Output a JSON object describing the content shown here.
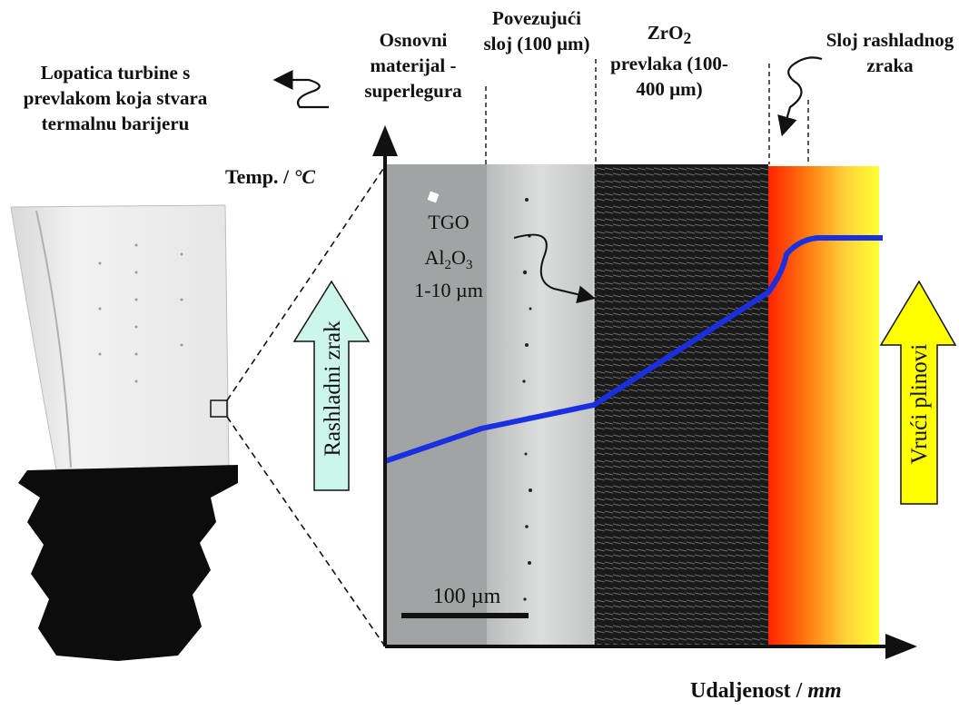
{
  "blade": {
    "title": "Lopatica turbine s prevlakom koja stvara termalnu barijeru"
  },
  "layers": {
    "base": "Osnovni materijal - superlegura",
    "bond": "Povezujući sloj (100 µm)",
    "zro2_main": "ZrO",
    "zro2_sub": "2",
    "zro2_rest": "prevlaka (100-400 µm)",
    "cooling_air_layer": "Sloj rashladnog zraka"
  },
  "axes": {
    "y_label_text": "Temp. / ",
    "y_label_unit": "°C",
    "x_label_text": "Udaljenost / ",
    "x_label_unit": "mm"
  },
  "annotations": {
    "tgo_line1": "TGO",
    "tgo_al": "Al",
    "tgo_sub1": "2",
    "tgo_o": "O",
    "tgo_sub2": "3",
    "tgo_line3": "1-10 µm",
    "scale_bar": "100 µm"
  },
  "arrows": {
    "cold": "Rashladni zrak",
    "hot": "Vrući plinovi"
  },
  "colors": {
    "profile_line": "#1a2fe0",
    "cold_arrow": "#ccf5ec",
    "hot_arrow": "#ffff00",
    "hot_gas_start": "#ff2a00",
    "hot_gas_end": "#ffff33"
  }
}
